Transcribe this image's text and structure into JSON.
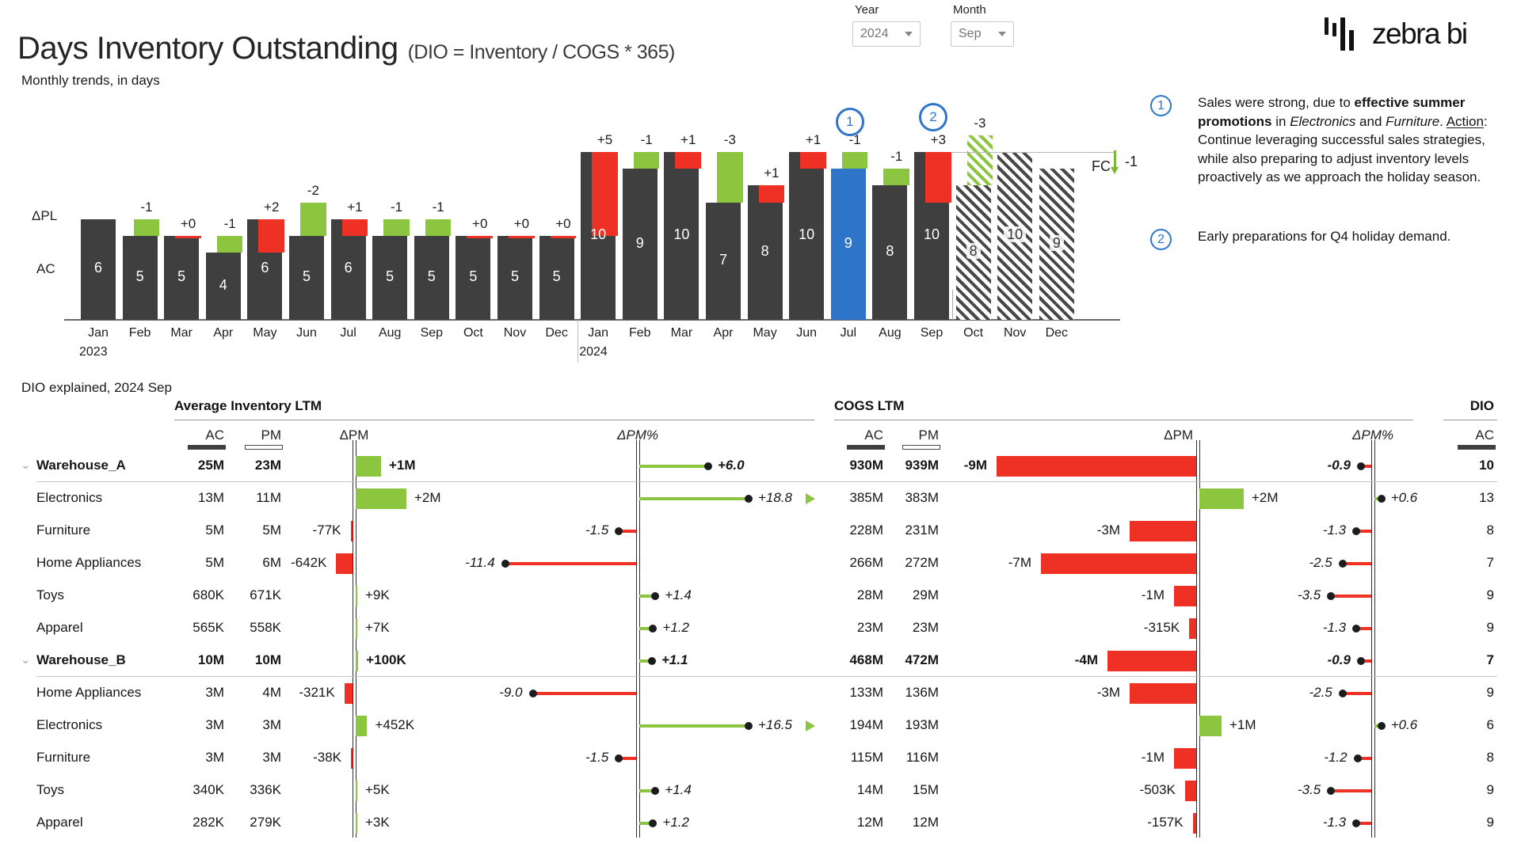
{
  "header": {
    "title": "Days Inventory Outstanding",
    "subtitle": "(DIO = Inventory / COGS * 365)",
    "filters": [
      {
        "label": "Year",
        "value": "2024"
      },
      {
        "label": "Month",
        "value": "Sep"
      }
    ],
    "logo": {
      "text": "zebra bi",
      "icon": "zebra-bars-icon"
    }
  },
  "chart_data": {
    "type": "bar",
    "title": "Monthly trends, in days",
    "unit": "days",
    "ylim": [
      0,
      11
    ],
    "left_axis_labels": {
      "variance": "ΔPL",
      "actual": "AC"
    },
    "years": [
      {
        "label": "2023",
        "month_index": 0
      },
      {
        "label": "2024",
        "month_index": 12
      }
    ],
    "months": [
      {
        "month": "Jan",
        "year": 2023,
        "ac": 6,
        "variance": null,
        "scenario": "AC"
      },
      {
        "month": "Feb",
        "year": 2023,
        "ac": 5,
        "variance": {
          "label": "-1",
          "value": -1
        },
        "scenario": "AC"
      },
      {
        "month": "Mar",
        "year": 2023,
        "ac": 5,
        "variance": {
          "label": "+0",
          "value": 0
        },
        "scenario": "AC"
      },
      {
        "month": "Apr",
        "year": 2023,
        "ac": 4,
        "variance": {
          "label": "-1",
          "value": -1
        },
        "scenario": "AC"
      },
      {
        "month": "May",
        "year": 2023,
        "ac": 6,
        "variance": {
          "label": "+2",
          "value": 2
        },
        "scenario": "AC"
      },
      {
        "month": "Jun",
        "year": 2023,
        "ac": 5,
        "variance": {
          "label": "-2",
          "value": -2
        },
        "scenario": "AC"
      },
      {
        "month": "Jul",
        "year": 2023,
        "ac": 6,
        "variance": {
          "label": "+1",
          "value": 1
        },
        "scenario": "AC"
      },
      {
        "month": "Aug",
        "year": 2023,
        "ac": 5,
        "variance": {
          "label": "-1",
          "value": -1
        },
        "scenario": "AC"
      },
      {
        "month": "Sep",
        "year": 2023,
        "ac": 5,
        "variance": {
          "label": "-1",
          "value": -1
        },
        "scenario": "AC"
      },
      {
        "month": "Oct",
        "year": 2023,
        "ac": 5,
        "variance": {
          "label": "+0",
          "value": 0
        },
        "scenario": "AC"
      },
      {
        "month": "Nov",
        "year": 2023,
        "ac": 5,
        "variance": {
          "label": "+0",
          "value": 0
        },
        "scenario": "AC"
      },
      {
        "month": "Dec",
        "year": 2023,
        "ac": 5,
        "variance": {
          "label": "+0",
          "value": 0
        },
        "scenario": "AC"
      },
      {
        "month": "Jan",
        "year": 2024,
        "ac": 10,
        "variance": {
          "label": "+5",
          "value": 5
        },
        "scenario": "AC"
      },
      {
        "month": "Feb",
        "year": 2024,
        "ac": 9,
        "variance": {
          "label": "-1",
          "value": -1
        },
        "scenario": "AC"
      },
      {
        "month": "Mar",
        "year": 2024,
        "ac": 10,
        "variance": {
          "label": "+1",
          "value": 1
        },
        "scenario": "AC"
      },
      {
        "month": "Apr",
        "year": 2024,
        "ac": 7,
        "variance": {
          "label": "-3",
          "value": -3
        },
        "scenario": "AC"
      },
      {
        "month": "May",
        "year": 2024,
        "ac": 8,
        "variance": {
          "label": "+1",
          "value": 1
        },
        "scenario": "AC"
      },
      {
        "month": "Jun",
        "year": 2024,
        "ac": 10,
        "variance": {
          "label": "+1",
          "value": 1
        },
        "scenario": "AC"
      },
      {
        "month": "Jul",
        "year": 2024,
        "ac": 9,
        "variance": {
          "label": "-1",
          "value": -1
        },
        "scenario": "AC",
        "highlighted": true
      },
      {
        "month": "Aug",
        "year": 2024,
        "ac": 8,
        "variance": {
          "label": "-1",
          "value": -1
        },
        "scenario": "AC"
      },
      {
        "month": "Sep",
        "year": 2024,
        "ac": 10,
        "variance": {
          "label": "+3",
          "value": 3
        },
        "scenario": "AC"
      },
      {
        "month": "Oct",
        "year": 2024,
        "ac": 8,
        "variance": {
          "label": "-3",
          "value": -3
        },
        "scenario": "FC"
      },
      {
        "month": "Nov",
        "year": 2024,
        "ac": 10,
        "variance": null,
        "scenario": "FC"
      },
      {
        "month": "Dec",
        "year": 2024,
        "ac": 9,
        "variance": null,
        "scenario": "FC"
      }
    ],
    "markers": [
      {
        "number": "1",
        "month_index": 18
      },
      {
        "number": "2",
        "month_index": 20
      }
    ],
    "forecast_flag": {
      "label": "FC",
      "value": "-1"
    },
    "colors": {
      "actual": "#3f3f3f",
      "favorable": "#8cc540",
      "unfavorable": "#ee3124",
      "highlight": "#2e75c9",
      "marker": "#2e75c9"
    }
  },
  "annotations": [
    {
      "number": "1",
      "segments": [
        {
          "t": "Sales were strong, due to "
        },
        {
          "t": "effective summer promotions",
          "b": true
        },
        {
          "t": " in "
        },
        {
          "t": "Electronics",
          "i": true
        },
        {
          "t": " and "
        },
        {
          "t": "Furniture",
          "i": true
        },
        {
          "t": ". "
        },
        {
          "t": "Action",
          "u": true
        },
        {
          "t": ": Continue leveraging successful sales strategies, while also preparing to adjust inventory levels proactively as we approach the holiday season."
        }
      ]
    },
    {
      "number": "2",
      "segments": [
        {
          "t": "Early preparations for Q4 holiday demand."
        }
      ]
    }
  ],
  "table": {
    "title": "DIO explained, 2024 Sep",
    "groups": [
      {
        "label": "Average Inventory LTM"
      },
      {
        "label": "COGS LTM"
      },
      {
        "label": "DIO"
      }
    ],
    "columns": {
      "ac": "AC",
      "pm": "PM",
      "dpm": "ΔPM",
      "dpm_pct": "ΔPM%"
    },
    "rows": [
      {
        "name": "Warehouse_A",
        "bold": true,
        "expandable": true,
        "inv": {
          "ac": "25M",
          "pm": "23M",
          "dpm_label": "+1M",
          "dpm_m": 1.0,
          "pct_label": "+6.0",
          "pct": 6.0,
          "clipped": false
        },
        "cogs": {
          "ac": "930M",
          "pm": "939M",
          "dpm_label": "-9M",
          "dpm_m": -9,
          "pct_label": "-0.9",
          "pct": -0.9
        },
        "dio": "10"
      },
      {
        "name": "Electronics",
        "bold": false,
        "expandable": false,
        "inv": {
          "ac": "13M",
          "pm": "11M",
          "dpm_label": "+2M",
          "dpm_m": 2.0,
          "pct_label": "+18.8",
          "pct": 18.8,
          "clipped": true
        },
        "cogs": {
          "ac": "385M",
          "pm": "383M",
          "dpm_label": "+2M",
          "dpm_m": 2,
          "pct_label": "+0.6",
          "pct": 0.6
        },
        "dio": "13"
      },
      {
        "name": "Furniture",
        "bold": false,
        "expandable": false,
        "inv": {
          "ac": "5M",
          "pm": "5M",
          "dpm_label": "-77K",
          "dpm_m": -0.077,
          "pct_label": "-1.5",
          "pct": -1.5,
          "clipped": false
        },
        "cogs": {
          "ac": "228M",
          "pm": "231M",
          "dpm_label": "-3M",
          "dpm_m": -3,
          "pct_label": "-1.3",
          "pct": -1.3
        },
        "dio": "8"
      },
      {
        "name": "Home Appliances",
        "bold": false,
        "expandable": false,
        "inv": {
          "ac": "5M",
          "pm": "6M",
          "dpm_label": "-642K",
          "dpm_m": -0.642,
          "pct_label": "-11.4",
          "pct": -11.4,
          "clipped": false
        },
        "cogs": {
          "ac": "266M",
          "pm": "272M",
          "dpm_label": "-7M",
          "dpm_m": -7,
          "pct_label": "-2.5",
          "pct": -2.5
        },
        "dio": "7"
      },
      {
        "name": "Toys",
        "bold": false,
        "expandable": false,
        "inv": {
          "ac": "680K",
          "pm": "671K",
          "dpm_label": "+9K",
          "dpm_m": 0.009,
          "pct_label": "+1.4",
          "pct": 1.4,
          "clipped": false
        },
        "cogs": {
          "ac": "28M",
          "pm": "29M",
          "dpm_label": "-1M",
          "dpm_m": -1,
          "pct_label": "-3.5",
          "pct": -3.5
        },
        "dio": "9"
      },
      {
        "name": "Apparel",
        "bold": false,
        "expandable": false,
        "inv": {
          "ac": "565K",
          "pm": "558K",
          "dpm_label": "+7K",
          "dpm_m": 0.007,
          "pct_label": "+1.2",
          "pct": 1.2,
          "clipped": false
        },
        "cogs": {
          "ac": "23M",
          "pm": "23M",
          "dpm_label": "-315K",
          "dpm_m": -0.315,
          "pct_label": "-1.3",
          "pct": -1.3
        },
        "dio": "9"
      },
      {
        "name": "Warehouse_B",
        "bold": true,
        "expandable": true,
        "inv": {
          "ac": "10M",
          "pm": "10M",
          "dpm_label": "+100K",
          "dpm_m": 0.1,
          "pct_label": "+1.1",
          "pct": 1.1,
          "clipped": false
        },
        "cogs": {
          "ac": "468M",
          "pm": "472M",
          "dpm_label": "-4M",
          "dpm_m": -4,
          "pct_label": "-0.9",
          "pct": -0.9
        },
        "dio": "7"
      },
      {
        "name": "Home Appliances",
        "bold": false,
        "expandable": false,
        "inv": {
          "ac": "3M",
          "pm": "4M",
          "dpm_label": "-321K",
          "dpm_m": -0.321,
          "pct_label": "-9.0",
          "pct": -9.0,
          "clipped": false
        },
        "cogs": {
          "ac": "133M",
          "pm": "136M",
          "dpm_label": "-3M",
          "dpm_m": -3,
          "pct_label": "-2.5",
          "pct": -2.5
        },
        "dio": "9"
      },
      {
        "name": "Electronics",
        "bold": false,
        "expandable": false,
        "inv": {
          "ac": "3M",
          "pm": "3M",
          "dpm_label": "+452K",
          "dpm_m": 0.452,
          "pct_label": "+16.5",
          "pct": 16.5,
          "clipped": true
        },
        "cogs": {
          "ac": "194M",
          "pm": "193M",
          "dpm_label": "+1M",
          "dpm_m": 1,
          "pct_label": "+0.6",
          "pct": 0.6
        },
        "dio": "6"
      },
      {
        "name": "Furniture",
        "bold": false,
        "expandable": false,
        "inv": {
          "ac": "3M",
          "pm": "3M",
          "dpm_label": "-38K",
          "dpm_m": -0.038,
          "pct_label": "-1.5",
          "pct": -1.5,
          "clipped": false
        },
        "cogs": {
          "ac": "115M",
          "pm": "116M",
          "dpm_label": "-1M",
          "dpm_m": -1,
          "pct_label": "-1.2",
          "pct": -1.2
        },
        "dio": "8"
      },
      {
        "name": "Toys",
        "bold": false,
        "expandable": false,
        "inv": {
          "ac": "340K",
          "pm": "336K",
          "dpm_label": "+5K",
          "dpm_m": 0.005,
          "pct_label": "+1.4",
          "pct": 1.4,
          "clipped": false
        },
        "cogs": {
          "ac": "14M",
          "pm": "15M",
          "dpm_label": "-503K",
          "dpm_m": -0.503,
          "pct_label": "-3.5",
          "pct": -3.5
        },
        "dio": "9"
      },
      {
        "name": "Apparel",
        "bold": false,
        "expandable": false,
        "inv": {
          "ac": "282K",
          "pm": "279K",
          "dpm_label": "+3K",
          "dpm_m": 0.003,
          "pct_label": "+1.2",
          "pct": 1.2,
          "clipped": false
        },
        "cogs": {
          "ac": "12M",
          "pm": "12M",
          "dpm_label": "-157K",
          "dpm_m": -0.157,
          "pct_label": "-1.3",
          "pct": -1.3
        },
        "dio": "9"
      }
    ]
  }
}
